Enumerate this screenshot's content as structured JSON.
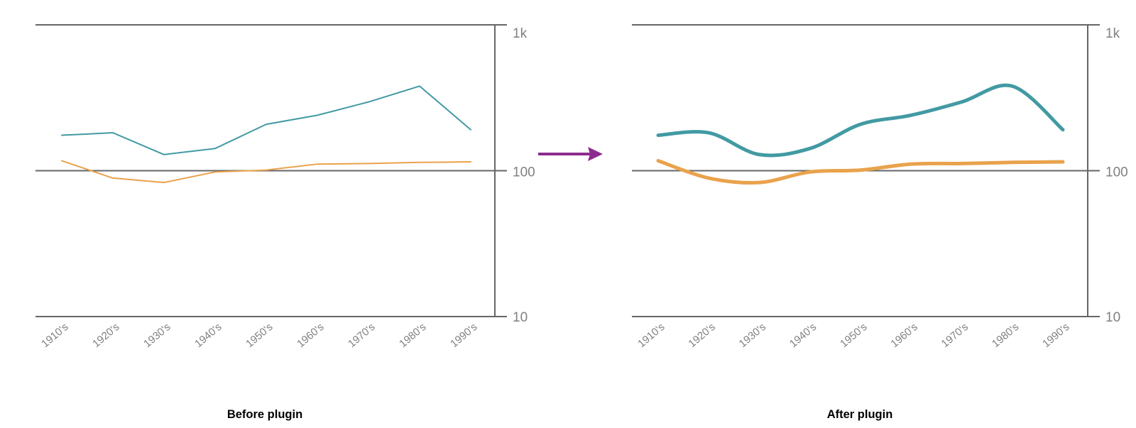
{
  "chart_data": [
    {
      "type": "line",
      "title": "Before plugin",
      "categories": [
        "1910's",
        "1920's",
        "1930's",
        "1940's",
        "1950's",
        "1960's",
        "1970's",
        "1980's",
        "1990's"
      ],
      "series": [
        {
          "name": "teal",
          "color": "#429aa3",
          "values": [
            175,
            182,
            129,
            142,
            208,
            240,
            296,
            380,
            191
          ]
        },
        {
          "name": "orange",
          "color": "#e9a24c",
          "values": [
            117,
            89,
            83,
            98,
            101,
            111,
            112,
            114,
            115
          ]
        }
      ],
      "y_axis": {
        "scale": "log",
        "range": [
          10,
          1000
        ],
        "side": "right",
        "ticks": [
          {
            "label": "1k",
            "value": 1000
          },
          {
            "label": "100",
            "value": 100
          },
          {
            "label": "10",
            "value": 10
          }
        ]
      },
      "x_axis": {
        "label_rotation": -40
      },
      "grid": "horizontal-at-ticks",
      "legend": "none",
      "style": {
        "smoothed": false,
        "line_width": 2
      },
      "colors": {
        "axis": "#666666",
        "tick_label": "#808080",
        "title": "#000000"
      }
    },
    {
      "type": "line",
      "title": "After plugin",
      "categories": [
        "1910's",
        "1920's",
        "1930's",
        "1940's",
        "1950's",
        "1960's",
        "1970's",
        "1980's",
        "1990's"
      ],
      "series": [
        {
          "name": "teal",
          "color": "#429aa3",
          "values": [
            175,
            182,
            129,
            142,
            208,
            240,
            296,
            380,
            191
          ]
        },
        {
          "name": "orange",
          "color": "#e9a24c",
          "values": [
            117,
            89,
            83,
            98,
            101,
            111,
            112,
            114,
            115
          ]
        }
      ],
      "y_axis": {
        "scale": "log",
        "range": [
          10,
          1000
        ],
        "side": "right",
        "ticks": [
          {
            "label": "1k",
            "value": 1000
          },
          {
            "label": "100",
            "value": 100
          },
          {
            "label": "10",
            "value": 10
          }
        ]
      },
      "x_axis": {
        "label_rotation": -40
      },
      "grid": "horizontal-at-ticks",
      "legend": "none",
      "style": {
        "smoothed": true,
        "line_width": 5
      },
      "colors": {
        "axis": "#666666",
        "tick_label": "#808080",
        "title": "#000000"
      }
    }
  ],
  "arrow": {
    "color": "#8e2b8f",
    "direction": "right"
  }
}
